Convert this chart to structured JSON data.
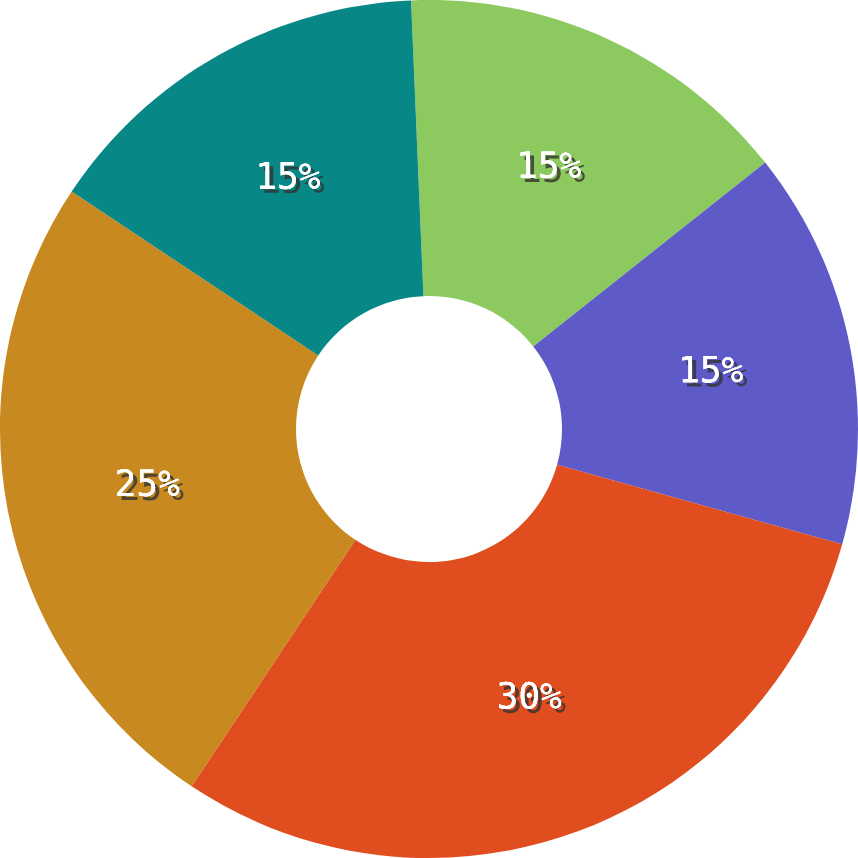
{
  "chart_data": {
    "type": "donut",
    "categories": [
      null,
      null,
      null,
      null,
      null
    ],
    "values": [
      15,
      15,
      30,
      25,
      15
    ],
    "colors": [
      "#8cc95f",
      "#5e5bc8",
      "#e04e1f",
      "#c88a20",
      "#088787"
    ],
    "value_labels": [
      "15%",
      "15%",
      "30%",
      "25%",
      "15%"
    ]
  }
}
